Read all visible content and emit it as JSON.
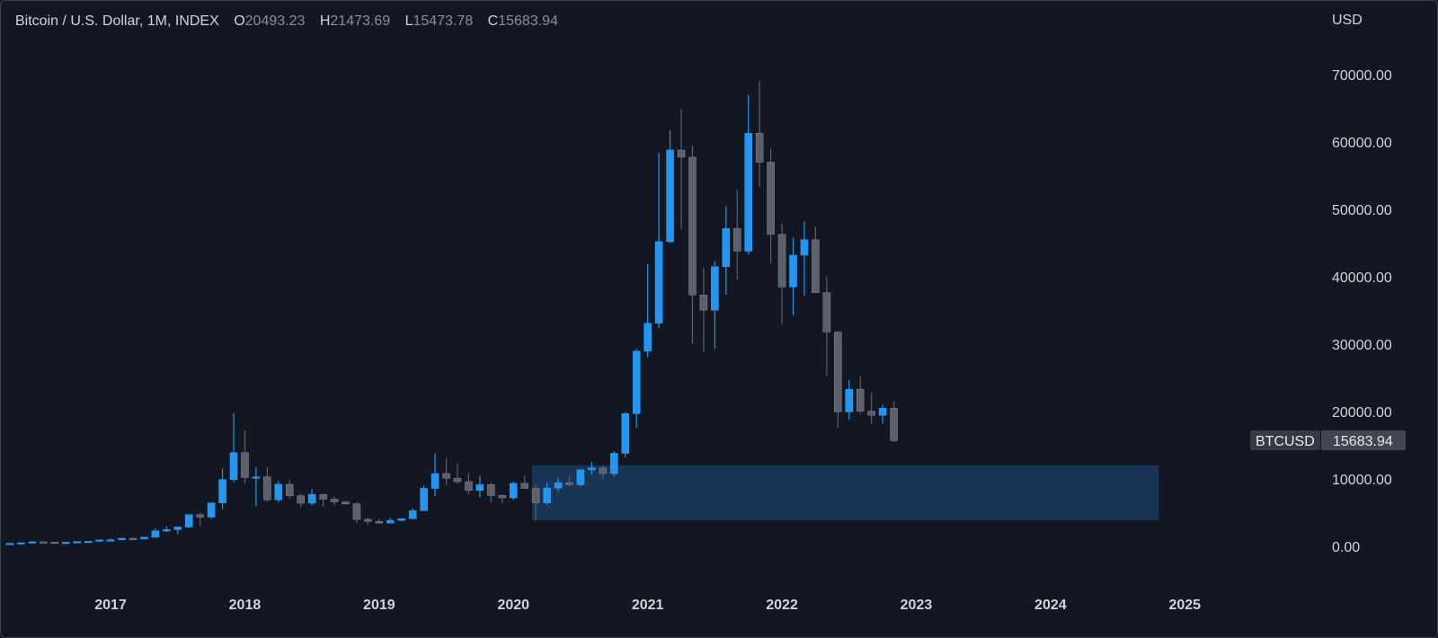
{
  "legend": {
    "symbol": "Bitcoin / U.S. Dollar, 1M, INDEX",
    "o_label": "O",
    "o_value": "20493.23",
    "h_label": "H",
    "h_value": "21473.69",
    "l_label": "L",
    "l_value": "15473.78",
    "c_label": "C",
    "c_value": "15683.94"
  },
  "price_tag": {
    "symbol": "BTCUSD",
    "price": "15683.94"
  },
  "colors": {
    "background": "#131722",
    "up": "#2196f3",
    "down": "#5d606b",
    "zone": "#1c3a5e",
    "text": "#d1d4dc"
  },
  "chart_data": {
    "type": "candlestick",
    "interval": "1M",
    "y_unit": "USD",
    "ylim": [
      -2000,
      72000
    ],
    "y_ticks": [
      0,
      10000,
      20000,
      30000,
      40000,
      50000,
      60000,
      70000
    ],
    "y_tick_labels": [
      "0.00",
      "10000.00",
      "20000.00",
      "30000.00",
      "40000.00",
      "50000.00",
      "60000.00",
      "70000.00"
    ],
    "x_start": "2016-04",
    "x_range": [
      "2016-04",
      "2025-05"
    ],
    "x_ticks": [
      "2017-01",
      "2018-01",
      "2019-01",
      "2020-01",
      "2021-01",
      "2022-01",
      "2023-01",
      "2024-01",
      "2025-01"
    ],
    "x_tick_labels": [
      "2017",
      "2018",
      "2019",
      "2020",
      "2021",
      "2022",
      "2023",
      "2024",
      "2025"
    ],
    "grid": false,
    "last_price": 15683.94,
    "zone": {
      "from": "2020-03",
      "to": "2024-11",
      "low": 3900,
      "high": 12000
    },
    "candles": [
      [
        "2016-04",
        416,
        466,
        415,
        448
      ],
      [
        "2016-05",
        448,
        550,
        440,
        531
      ],
      [
        "2016-06",
        531,
        780,
        520,
        673
      ],
      [
        "2016-07",
        673,
        700,
        600,
        624
      ],
      [
        "2016-08",
        624,
        630,
        520,
        575
      ],
      [
        "2016-09",
        575,
        615,
        590,
        608
      ],
      [
        "2016-10",
        608,
        740,
        605,
        700
      ],
      [
        "2016-11",
        700,
        760,
        690,
        745
      ],
      [
        "2016-12",
        745,
        980,
        740,
        964
      ],
      [
        "2017-01",
        964,
        1150,
        760,
        970
      ],
      [
        "2017-02",
        970,
        1200,
        940,
        1190
      ],
      [
        "2017-03",
        1190,
        1350,
        890,
        1080
      ],
      [
        "2017-04",
        1080,
        1400,
        1060,
        1350
      ],
      [
        "2017-05",
        1350,
        2700,
        1340,
        2300
      ],
      [
        "2017-06",
        2300,
        3000,
        2100,
        2480
      ],
      [
        "2017-07",
        2480,
        2900,
        1800,
        2870
      ],
      [
        "2017-08",
        2870,
        4700,
        2700,
        4700
      ],
      [
        "2017-09",
        4700,
        5000,
        2900,
        4340
      ],
      [
        "2017-10",
        4340,
        6400,
        4100,
        6440
      ],
      [
        "2017-11",
        6440,
        11500,
        5500,
        9900
      ],
      [
        "2017-12",
        9900,
        19800,
        9500,
        13900
      ],
      [
        "2018-01",
        13900,
        17200,
        9300,
        10200
      ],
      [
        "2018-02",
        10200,
        11700,
        6000,
        10300
      ],
      [
        "2018-03",
        10300,
        11700,
        6600,
        6900
      ],
      [
        "2018-04",
        6900,
        9700,
        6500,
        9200
      ],
      [
        "2018-05",
        9200,
        9900,
        7100,
        7500
      ],
      [
        "2018-06",
        7500,
        7800,
        5800,
        6400
      ],
      [
        "2018-07",
        6400,
        8500,
        6100,
        7700
      ],
      [
        "2018-08",
        7700,
        7800,
        5900,
        7000
      ],
      [
        "2018-09",
        7000,
        7400,
        6100,
        6600
      ],
      [
        "2018-10",
        6600,
        6700,
        6200,
        6300
      ],
      [
        "2018-11",
        6300,
        6600,
        3500,
        4000
      ],
      [
        "2018-12",
        4000,
        4300,
        3200,
        3700
      ],
      [
        "2019-01",
        3700,
        4100,
        3300,
        3450
      ],
      [
        "2019-02",
        3450,
        4200,
        3400,
        3850
      ],
      [
        "2019-03",
        3850,
        4100,
        3700,
        4100
      ],
      [
        "2019-04",
        4100,
        5600,
        4050,
        5300
      ],
      [
        "2019-05",
        5300,
        9000,
        5300,
        8600
      ],
      [
        "2019-06",
        8600,
        13800,
        7500,
        10800
      ],
      [
        "2019-07",
        10800,
        13200,
        9100,
        10100
      ],
      [
        "2019-08",
        10100,
        12300,
        9300,
        9600
      ],
      [
        "2019-09",
        9600,
        10900,
        7700,
        8300
      ],
      [
        "2019-10",
        8300,
        10500,
        7300,
        9150
      ],
      [
        "2019-11",
        9150,
        9500,
        6500,
        7550
      ],
      [
        "2019-12",
        7550,
        7700,
        6400,
        7200
      ],
      [
        "2020-01",
        7200,
        9600,
        6900,
        9350
      ],
      [
        "2020-02",
        9350,
        10500,
        8500,
        8600
      ],
      [
        "2020-03",
        8600,
        9200,
        3800,
        6450
      ],
      [
        "2020-04",
        6450,
        9500,
        6150,
        8650
      ],
      [
        "2020-05",
        8650,
        10100,
        8100,
        9450
      ],
      [
        "2020-06",
        9450,
        10400,
        8900,
        9150
      ],
      [
        "2020-07",
        9150,
        11500,
        8900,
        11350
      ],
      [
        "2020-08",
        11350,
        12500,
        10600,
        11650
      ],
      [
        "2020-09",
        11650,
        12100,
        9900,
        10800
      ],
      [
        "2020-10",
        10800,
        14100,
        10400,
        13800
      ],
      [
        "2020-11",
        13800,
        19900,
        13200,
        19700
      ],
      [
        "2020-12",
        19700,
        29300,
        17600,
        28950
      ],
      [
        "2021-01",
        28950,
        41900,
        28100,
        33100
      ],
      [
        "2021-02",
        33100,
        58400,
        32400,
        45200
      ],
      [
        "2021-03",
        45200,
        61800,
        45000,
        58800
      ],
      [
        "2021-04",
        58800,
        64900,
        47100,
        57750
      ],
      [
        "2021-05",
        57750,
        59500,
        30000,
        37300
      ],
      [
        "2021-06",
        37300,
        41300,
        28800,
        35050
      ],
      [
        "2021-07",
        35050,
        42300,
        29300,
        41500
      ],
      [
        "2021-08",
        41500,
        50500,
        37300,
        47150
      ],
      [
        "2021-09",
        47150,
        52900,
        39600,
        43800
      ],
      [
        "2021-10",
        43800,
        67000,
        43300,
        61300
      ],
      [
        "2021-11",
        61300,
        69000,
        53300,
        57000
      ],
      [
        "2021-12",
        57000,
        59100,
        42000,
        46300
      ],
      [
        "2022-01",
        46300,
        47900,
        33000,
        38500
      ],
      [
        "2022-02",
        38500,
        45800,
        34300,
        43200
      ],
      [
        "2022-03",
        43200,
        48200,
        37200,
        45500
      ],
      [
        "2022-04",
        45500,
        47400,
        37700,
        37650
      ],
      [
        "2022-05",
        37650,
        40000,
        25300,
        31800
      ],
      [
        "2022-06",
        31800,
        31900,
        17600,
        19950
      ],
      [
        "2022-07",
        19950,
        24700,
        18800,
        23300
      ],
      [
        "2022-08",
        23300,
        25200,
        19600,
        20050
      ],
      [
        "2022-09",
        20050,
        22800,
        18200,
        19450
      ],
      [
        "2022-10",
        19450,
        21000,
        18200,
        20500
      ],
      [
        "2022-11",
        20493.23,
        21473.69,
        15473.78,
        15683.94
      ]
    ]
  }
}
